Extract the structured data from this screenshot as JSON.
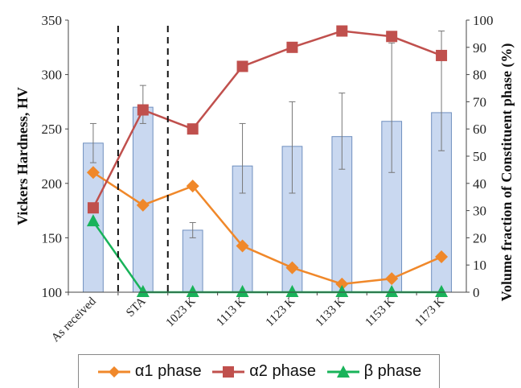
{
  "chart_data": {
    "type": "bar+line",
    "categories": [
      "As received",
      "STA",
      "1023 K",
      "1113 K",
      "1123 K",
      "1133 K",
      "1153 K",
      "1173 K"
    ],
    "bars": {
      "name": "Vickers Hardness",
      "values": [
        237,
        270,
        157,
        216,
        234,
        243,
        257,
        265
      ],
      "error_up": [
        18,
        20,
        7,
        39,
        41,
        40,
        72,
        75
      ],
      "error_down": [
        18,
        15,
        7,
        25,
        43,
        30,
        47,
        35
      ],
      "color": "#c9d8f0",
      "edge_color": "#6f8fbf"
    },
    "series": [
      {
        "name": "α1 phase",
        "values": [
          44,
          32,
          39,
          17,
          9,
          3,
          5,
          13
        ],
        "color": "#f0882a",
        "marker": "diamond"
      },
      {
        "name": "α2 phase",
        "values": [
          31,
          67,
          60,
          83,
          90,
          96,
          94,
          87
        ],
        "color": "#c0504d",
        "marker": "square"
      },
      {
        "name": "β phase",
        "values": [
          26,
          0,
          0,
          0,
          0,
          0,
          0,
          0
        ],
        "color": "#19b35a",
        "marker": "triangle"
      }
    ],
    "ylabel": "Vickers Hardness, HV",
    "ylim": [
      100,
      350
    ],
    "yticks": [
      "100",
      "150",
      "200",
      "250",
      "300",
      "350"
    ],
    "y2label": "Volume fraction of Constituent phase (%)",
    "y2lim": [
      0,
      100
    ],
    "y2ticks": [
      "0",
      "10",
      "20",
      "30",
      "40",
      "50",
      "60",
      "70",
      "80",
      "90",
      "100"
    ],
    "dashed_dividers_after": [
      0,
      1
    ],
    "legend_position": "bottom"
  },
  "legend": {
    "items": [
      "α1 phase",
      "α2 phase",
      "β phase"
    ]
  }
}
